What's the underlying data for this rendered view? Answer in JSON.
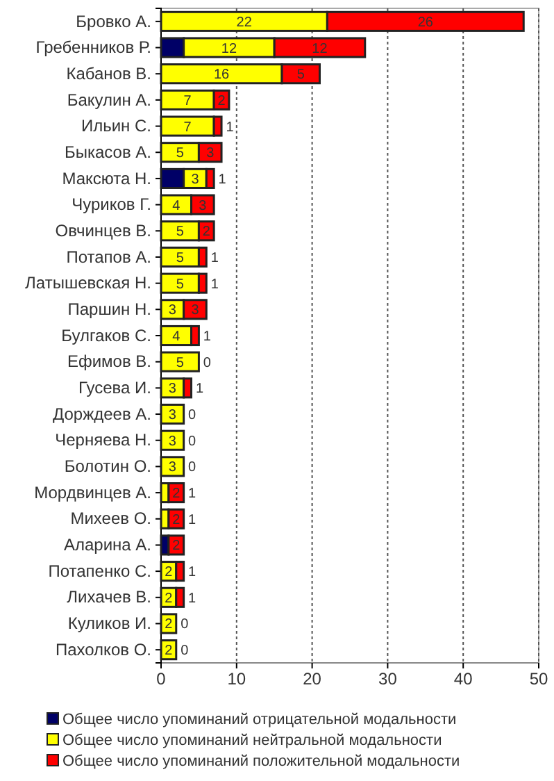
{
  "chart_data": {
    "type": "bar",
    "orientation": "horizontal",
    "stacked": true,
    "categories": [
      "Бровко А.",
      "Гребенников Р.",
      "Кабанов В.",
      "Бакулин А.",
      "Ильин С.",
      "Быкасов А.",
      "Максюта Н.",
      "Чуриков Г.",
      "Овчинцев В.",
      "Потапов А.",
      "Латышевская Н.",
      "Паршин Н.",
      "Булгаков С.",
      "Ефимов В.",
      "Гусева И.",
      "Дорждеев А.",
      "Черняева Н.",
      "Болотин О.",
      "Мордвинцев А.",
      "Михеев О.",
      "Аларина А.",
      "Потапенко С.",
      "Лихачев В.",
      "Куликов И.",
      "Пахолков О."
    ],
    "series": [
      {
        "name": "Общее число упоминаний отрицательной модальности",
        "color": "#000066",
        "values": [
          0,
          3,
          0,
          0,
          0,
          0,
          3,
          0,
          0,
          0,
          0,
          0,
          0,
          0,
          0,
          0,
          0,
          0,
          0,
          0,
          1,
          0,
          0,
          0,
          0
        ]
      },
      {
        "name": "Общее число упоминаний нейтральной модальности",
        "color": "#ffff00",
        "values": [
          22,
          12,
          16,
          7,
          7,
          5,
          3,
          4,
          5,
          5,
          5,
          3,
          4,
          5,
          3,
          3,
          3,
          3,
          1,
          1,
          0,
          2,
          2,
          2,
          2
        ],
        "value_labels": [
          "22",
          "12",
          "16",
          "7",
          "7",
          "5",
          "3",
          "4",
          "5",
          "5",
          "5",
          "3",
          "4",
          "5",
          "3",
          "3",
          "3",
          "3",
          "1",
          "1",
          null,
          "2",
          "2",
          "2",
          "2"
        ]
      },
      {
        "name": "Общее число упоминаний положительной модальности",
        "color": "#ff0000",
        "values": [
          26,
          12,
          5,
          2,
          1,
          3,
          1,
          3,
          2,
          1,
          1,
          3,
          1,
          0,
          1,
          0,
          0,
          0,
          2,
          2,
          2,
          1,
          1,
          0,
          0
        ],
        "value_labels": [
          "26",
          "12",
          "5",
          "2",
          "1",
          "3",
          "1",
          "3",
          "2",
          "1",
          "1",
          "3",
          "1",
          "0",
          "1",
          "0",
          "0",
          "0",
          "2",
          "2",
          "2",
          "1",
          "1",
          "0",
          "0"
        ]
      }
    ],
    "xlim": [
      0,
      50
    ],
    "xticks": [
      0,
      10,
      20,
      30,
      40,
      50
    ],
    "grid": "x",
    "legend": "bottom"
  }
}
